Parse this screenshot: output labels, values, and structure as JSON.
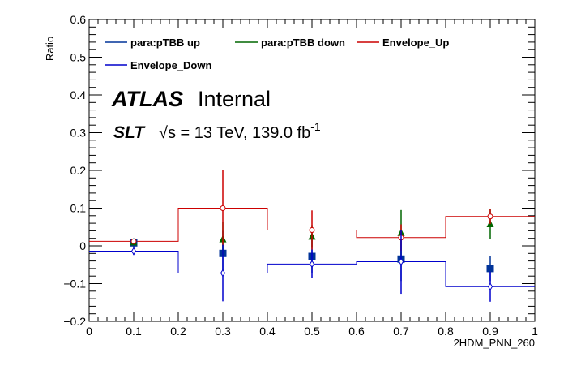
{
  "chart_data": {
    "type": "line",
    "ylabel": "Ratio",
    "xlabel": "2HDM_PNN_260",
    "xlim": [
      0,
      1
    ],
    "ylim": [
      -0.2,
      0.6
    ],
    "xticks": [
      "0",
      "0.1",
      "0.2",
      "0.3",
      "0.4",
      "0.5",
      "0.6",
      "0.7",
      "0.8",
      "0.9",
      "1"
    ],
    "yticks": [
      "−0.2",
      "−0.1",
      "0",
      "0.1",
      "0.2",
      "0.3",
      "0.4",
      "0.5",
      "0.6"
    ],
    "bin_edges": [
      0,
      0.2,
      0.4,
      0.6,
      0.8,
      1.0
    ],
    "atlas": {
      "label": "ATLAS",
      "status": "Internal"
    },
    "energy": {
      "channel": "SLT",
      "sqrt": "√s",
      "rest": " = 13 TeV, 139.0 fb",
      "sup": "-1"
    },
    "series": [
      {
        "name": "para:pTBB up",
        "color": "#003399",
        "marker": "square",
        "x": [
          0.1,
          0.3,
          0.5,
          0.7,
          0.9
        ],
        "values": [
          0.008,
          -0.02,
          -0.028,
          -0.035,
          -0.06
        ],
        "errors": [
          0.012,
          0.06,
          0.045,
          0.058,
          0.033
        ]
      },
      {
        "name": "para:pTBB down",
        "color": "#006600",
        "marker": "triangle",
        "x": [
          0.1,
          0.3,
          0.5,
          0.7,
          0.9
        ],
        "values": [
          0.01,
          0.018,
          0.025,
          0.035,
          0.058
        ],
        "errors": [
          0.006,
          0.045,
          0.03,
          0.06,
          0.04
        ]
      },
      {
        "name": "Envelope_Up",
        "color": "#cc0000",
        "marker": "open-circle",
        "x": [
          0.1,
          0.3,
          0.5,
          0.7,
          0.9
        ],
        "values": [
          0.012,
          0.1,
          0.042,
          0.022,
          0.078
        ],
        "errors": [
          0.004,
          0.1,
          0.052,
          0.035,
          0.02
        ]
      },
      {
        "name": "Envelope_Down",
        "color": "#0000cc",
        "marker": "open-diamond",
        "x": [
          0.1,
          0.3,
          0.5,
          0.7,
          0.9
        ],
        "values": [
          -0.014,
          -0.072,
          -0.048,
          -0.042,
          -0.108
        ],
        "errors": [
          0.01,
          0.075,
          0.038,
          0.085,
          0.04
        ]
      }
    ],
    "legend_placement": "top"
  }
}
